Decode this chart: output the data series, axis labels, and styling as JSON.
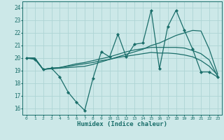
{
  "xlabel": "Humidex (Indice chaleur)",
  "bg_color": "#cce8e8",
  "line_color": "#1a6e6a",
  "grid_color": "#aed4d4",
  "xlim": [
    -0.5,
    23.5
  ],
  "ylim": [
    15.5,
    24.5
  ],
  "yticks": [
    16,
    17,
    18,
    19,
    20,
    21,
    22,
    23,
    24
  ],
  "xticks": [
    0,
    1,
    2,
    3,
    4,
    5,
    6,
    7,
    8,
    9,
    10,
    11,
    12,
    13,
    14,
    15,
    16,
    17,
    18,
    19,
    20,
    21,
    22,
    23
  ],
  "series": [
    [
      20.0,
      19.9,
      19.1,
      19.2,
      18.5,
      17.3,
      16.5,
      15.85,
      18.4,
      20.5,
      20.1,
      21.9,
      20.1,
      21.1,
      21.2,
      23.8,
      19.15,
      22.5,
      23.8,
      22.2,
      20.7,
      18.9,
      18.9,
      18.5
    ],
    [
      20.0,
      20.0,
      19.1,
      19.15,
      19.2,
      19.25,
      19.3,
      19.35,
      19.5,
      19.7,
      19.9,
      20.1,
      20.3,
      20.5,
      20.7,
      21.0,
      21.2,
      21.5,
      21.8,
      22.0,
      22.2,
      22.15,
      20.7,
      18.75
    ],
    [
      20.0,
      20.0,
      19.1,
      19.2,
      19.25,
      19.4,
      19.55,
      19.65,
      19.8,
      19.95,
      20.1,
      20.3,
      20.5,
      20.65,
      20.75,
      20.85,
      20.85,
      20.85,
      20.85,
      20.8,
      20.6,
      20.35,
      19.85,
      18.55
    ],
    [
      20.0,
      20.0,
      19.1,
      19.2,
      19.25,
      19.35,
      19.45,
      19.55,
      19.65,
      19.8,
      19.9,
      20.05,
      20.15,
      20.25,
      20.35,
      20.45,
      20.4,
      20.4,
      20.35,
      20.25,
      20.1,
      19.8,
      19.35,
      18.65
    ]
  ]
}
